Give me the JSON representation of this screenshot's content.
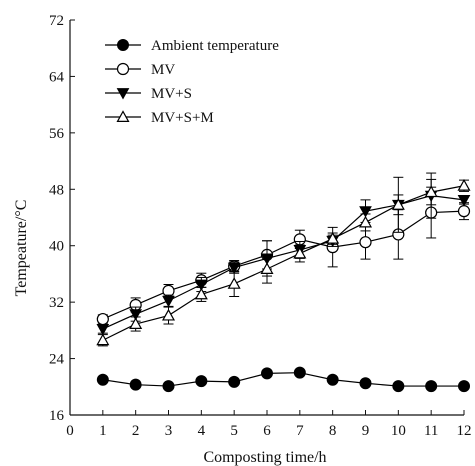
{
  "chart_data": {
    "type": "line",
    "title": "",
    "xlabel": "Composting time/h",
    "ylabel": "Tempeature/°C",
    "xlim": [
      0,
      12
    ],
    "ylim": [
      16,
      72
    ],
    "x_ticks": [
      0,
      1,
      2,
      3,
      4,
      5,
      6,
      7,
      8,
      9,
      10,
      11,
      12
    ],
    "y_ticks": [
      16,
      24,
      32,
      40,
      48,
      56,
      64,
      72
    ],
    "grid": false,
    "legend_position": "top-left",
    "x": [
      1,
      2,
      3,
      4,
      5,
      6,
      7,
      8,
      9,
      10,
      11,
      12
    ],
    "series": [
      {
        "name": "Ambient temperature",
        "marker": "filled-circle",
        "values": [
          21.0,
          20.3,
          20.1,
          20.8,
          20.7,
          21.9,
          22.0,
          21.0,
          20.5,
          20.1,
          20.1,
          20.1
        ],
        "errors": [
          0,
          0,
          0,
          0,
          0,
          0,
          0,
          0,
          0,
          0,
          0,
          0
        ]
      },
      {
        "name": "MV",
        "marker": "open-circle",
        "values": [
          29.6,
          31.6,
          33.6,
          35.1,
          37.1,
          38.7,
          40.9,
          39.8,
          40.5,
          41.6,
          44.7,
          44.9
        ],
        "errors": [
          0.6,
          1.0,
          0.9,
          1.0,
          0.8,
          2.0,
          1.3,
          2.8,
          2.4,
          3.5,
          3.6,
          1.2
        ]
      },
      {
        "name": "MV+S",
        "marker": "filled-triangle-down",
        "values": [
          28.2,
          30.3,
          32.2,
          34.5,
          36.9,
          38.2,
          39.4,
          40.7,
          44.9,
          45.8,
          47.1,
          46.5
        ],
        "errors": [
          0.6,
          1.0,
          0.8,
          1.0,
          0.8,
          2.5,
          1.2,
          0.8,
          1.6,
          3.9,
          3.2,
          0.6
        ]
      },
      {
        "name": "MV+S+M",
        "marker": "open-triangle-up",
        "values": [
          26.6,
          28.9,
          30.1,
          33.1,
          34.6,
          36.7,
          38.9,
          41.0,
          43.3,
          45.8,
          47.6,
          48.5
        ],
        "errors": [
          0.8,
          1.0,
          1.2,
          1.0,
          1.8,
          2.0,
          1.2,
          0.8,
          1.2,
          1.4,
          1.8,
          0.8
        ]
      }
    ]
  }
}
